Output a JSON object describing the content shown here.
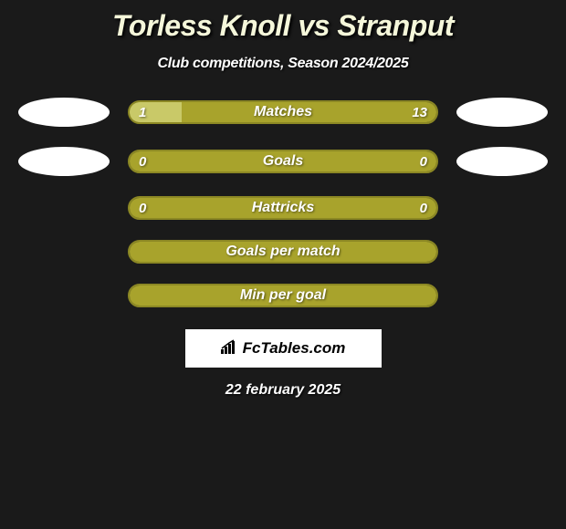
{
  "title": "Torless Knoll vs Stranput",
  "subtitle": "Club competitions, Season 2024/2025",
  "colors": {
    "background": "#1a1a1a",
    "title_color": "#f5f7da",
    "olive": "#a8a32c",
    "olive_border": "#8c8824",
    "light_cell": "#c9c968",
    "white": "#ffffff"
  },
  "ovals": [
    {
      "left": "#ffffff",
      "right": "#ffffff"
    },
    {
      "left": "#ffffff",
      "right": "#ffffff"
    }
  ],
  "bars": [
    {
      "label": "Matches",
      "left_value": "1",
      "right_value": "13",
      "left_pct": 17,
      "fill_bg": "#a8a32c",
      "left_fill": "#c9c968",
      "border": "#8c8824",
      "show_ovals": true
    },
    {
      "label": "Goals",
      "left_value": "0",
      "right_value": "0",
      "left_pct": 0,
      "fill_bg": "#a8a32c",
      "left_fill": "#c9c968",
      "border": "#8c8824",
      "show_ovals": true
    },
    {
      "label": "Hattricks",
      "left_value": "0",
      "right_value": "0",
      "left_pct": 0,
      "fill_bg": "#a8a32c",
      "left_fill": "#c9c968",
      "border": "#8c8824",
      "show_ovals": false
    },
    {
      "label": "Goals per match",
      "left_value": "",
      "right_value": "",
      "left_pct": 0,
      "fill_bg": "#a8a32c",
      "left_fill": "#c9c968",
      "border": "#8c8824",
      "show_ovals": false
    },
    {
      "label": "Min per goal",
      "left_value": "",
      "right_value": "",
      "left_pct": 0,
      "fill_bg": "#a8a32c",
      "left_fill": "#c9c968",
      "border": "#8c8824",
      "show_ovals": false
    }
  ],
  "brand": "FcTables.com",
  "date": "22 february 2025"
}
